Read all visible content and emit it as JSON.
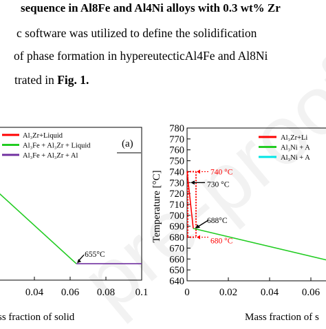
{
  "heading": "sequence in Al8Fe and Al4Ni alloys with 0.3 wt% Zr",
  "paragraph": {
    "line1": "c software was utilized to define the solidification",
    "line2": "of phase formation in hypereutecticAl4Fe and Al8Ni",
    "line3_prefix": "trated in ",
    "line3_ref": "Fig. 1."
  },
  "watermark": "pre-proof",
  "chart_data": [
    {
      "type": "line",
      "panel_label": "(a)",
      "xlabel": "ss fraction of solid",
      "xlim": [
        0.02,
        0.1
      ],
      "x_ticks": [
        "0.04",
        "0.06",
        "0.08",
        "0.1"
      ],
      "legend_position": "top-right",
      "legend": [
        {
          "label": "Al₃Zr+Liquid",
          "color": "#ff0000"
        },
        {
          "label": "Al₃Fe + Al₃Zr + Liquid",
          "color": "#22cc22"
        },
        {
          "label": "Al₃Fe + Al₃Zr + Al",
          "color": "#7030a0"
        }
      ],
      "series": [
        {
          "color": "#22cc22",
          "x": [
            0.02,
            0.0635
          ],
          "y": [
            720,
            655
          ]
        },
        {
          "color": "#7030a0",
          "x": [
            0.0635,
            0.1
          ],
          "y": [
            655,
            655
          ]
        }
      ],
      "annotations": [
        {
          "text": "655°C",
          "x": 0.0635,
          "y": 655
        }
      ]
    },
    {
      "type": "line",
      "ylabel": "Temperature [°C]",
      "xlabel": "Mass fraction of s",
      "ylim": [
        640,
        780
      ],
      "y_ticks": [
        "780",
        "770",
        "760",
        "750",
        "740",
        "730",
        "720",
        "710",
        "700",
        "690",
        "680",
        "670",
        "660",
        "650",
        "640"
      ],
      "xlim": [
        0,
        0.07
      ],
      "x_ticks": [
        "0",
        "0.02",
        "0.04",
        "0.06"
      ],
      "legend_position": "top-right",
      "legend": [
        {
          "label": "Al₃Zr+Li",
          "color": "#ff0000"
        },
        {
          "label": "Al₃Ni + A",
          "color": "#22cc22"
        },
        {
          "label": "Al₃Ni + A",
          "color": "#00e5e5"
        }
      ],
      "series": [
        {
          "color": "#ff0000",
          "x": [
            0,
            0.003
          ],
          "y": [
            740,
            688
          ]
        },
        {
          "color": "#22cc22",
          "x": [
            0.003,
            0.07
          ],
          "y": [
            688,
            658
          ]
        }
      ],
      "annotations": [
        {
          "text": "740 °C",
          "x": 0.0045,
          "y": 740,
          "color": "#ff0000"
        },
        {
          "text": "730 °C",
          "x": 0.0045,
          "y": 730,
          "color": "#000000"
        },
        {
          "text": "688°C",
          "x": 0.0045,
          "y": 688,
          "color": "#000000"
        },
        {
          "text": "680 °C",
          "x": 0.0045,
          "y": 680,
          "color": "#ff0000"
        }
      ]
    }
  ]
}
